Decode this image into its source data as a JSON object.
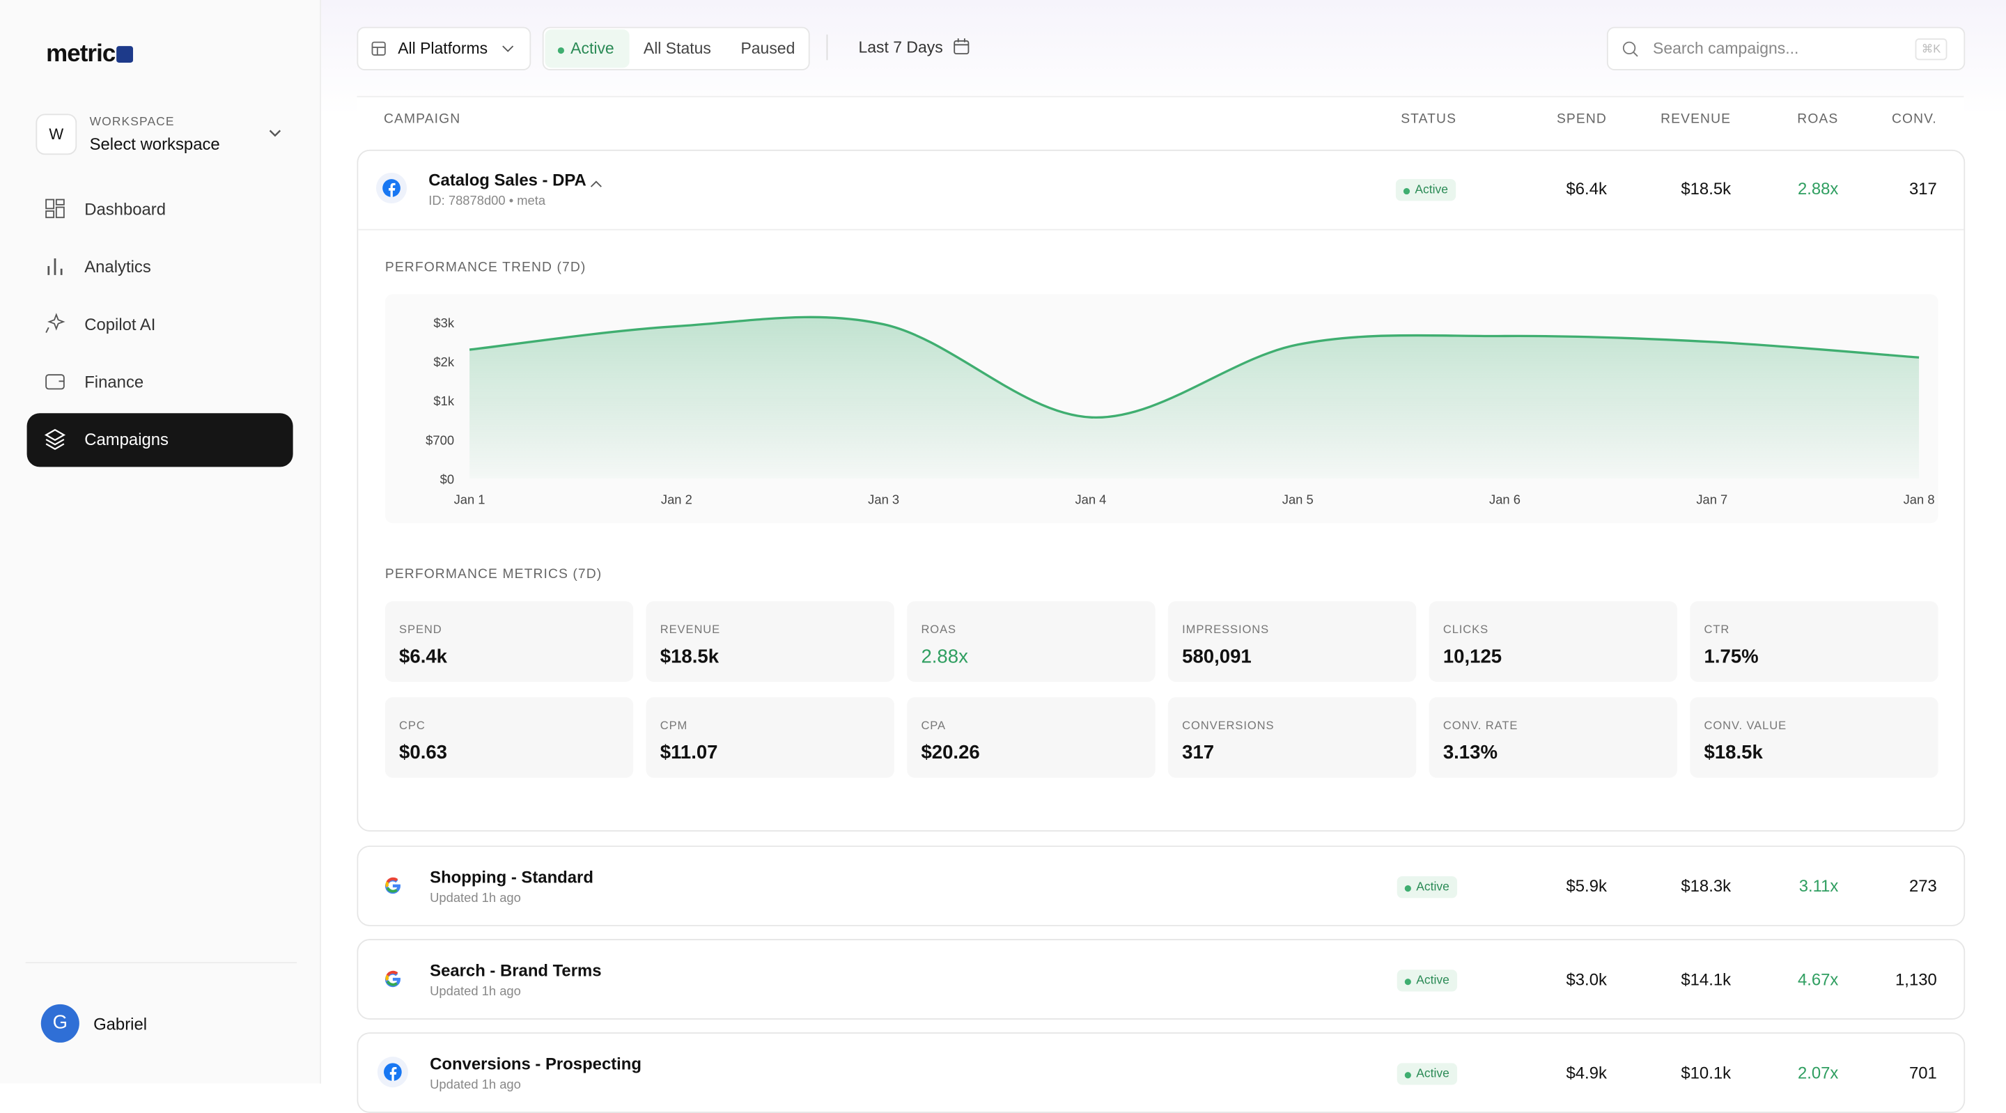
{
  "brand": "metric",
  "sidebar": {
    "workspace_initial": "W",
    "workspace_label": "WORKSPACE",
    "workspace_value": "Select workspace",
    "nav": [
      "Dashboard",
      "Analytics",
      "Copilot AI",
      "Finance",
      "Campaigns"
    ],
    "user_initial": "G",
    "user_name": "Gabriel"
  },
  "filters": {
    "platform": "All Platforms",
    "status": [
      "Active",
      "All Status",
      "Paused"
    ],
    "date": "Last 7 Days",
    "search_placeholder": "Search campaigns...",
    "shortcut": "⌘K"
  },
  "table": {
    "columns": [
      "CAMPAIGN",
      "STATUS",
      "SPEND",
      "REVENUE",
      "ROAS",
      "CONV."
    ],
    "rows": [
      {
        "platform": "meta",
        "name": "Catalog Sales - DPA",
        "sub": "ID: 78878d00 • meta",
        "status": "Active",
        "spend": "$6.4k",
        "revenue": "$18.5k",
        "roas": "2.88x",
        "conv": "317"
      },
      {
        "platform": "google",
        "name": "Shopping - Standard",
        "sub": "Updated 1h ago",
        "status": "Active",
        "spend": "$5.9k",
        "revenue": "$18.3k",
        "roas": "3.11x",
        "conv": "273"
      },
      {
        "platform": "google",
        "name": "Search - Brand Terms",
        "sub": "Updated 1h ago",
        "status": "Active",
        "spend": "$3.0k",
        "revenue": "$14.1k",
        "roas": "4.67x",
        "conv": "1,130"
      },
      {
        "platform": "meta",
        "name": "Conversions - Prospecting",
        "sub": "Updated 1h ago",
        "status": "Active",
        "spend": "$4.9k",
        "revenue": "$10.1k",
        "roas": "2.07x",
        "conv": "701"
      }
    ]
  },
  "expanded": {
    "trend_title": "PERFORMANCE TREND (7D)",
    "chart_data": {
      "type": "area",
      "categories": [
        "Jan 1",
        "Jan 2",
        "Jan 3",
        "Jan 4",
        "Jan 5",
        "Jan 6",
        "Jan 7",
        "Jan 8"
      ],
      "values": [
        2300,
        2900,
        2950,
        870,
        2430,
        2650,
        2500,
        2100
      ],
      "color": "#3fae70",
      "ylim": [
        0,
        3000
      ],
      "yticks": [
        {
          "value": 0,
          "label": "$0"
        },
        {
          "value": 700,
          "label": "$700"
        },
        {
          "value": 1000,
          "label": "$1k"
        },
        {
          "value": 2000,
          "label": "$2k"
        },
        {
          "value": 3000,
          "label": "$3k"
        }
      ]
    },
    "metrics_title": "PERFORMANCE METRICS (7D)",
    "metrics": [
      {
        "label": "SPEND",
        "value": "$6.4k"
      },
      {
        "label": "REVENUE",
        "value": "$18.5k"
      },
      {
        "label": "ROAS",
        "value": "2.88x"
      },
      {
        "label": "IMPRESSIONS",
        "value": "580,091"
      },
      {
        "label": "CLICKS",
        "value": "10,125"
      },
      {
        "label": "CTR",
        "value": "1.75%"
      },
      {
        "label": "CPC",
        "value": "$0.63"
      },
      {
        "label": "CPM",
        "value": "$11.07"
      },
      {
        "label": "CPA",
        "value": "$20.26"
      },
      {
        "label": "CONVERSIONS",
        "value": "317"
      },
      {
        "label": "CONV. RATE",
        "value": "3.13%"
      },
      {
        "label": "CONV. VALUE",
        "value": "$18.5k"
      }
    ]
  }
}
